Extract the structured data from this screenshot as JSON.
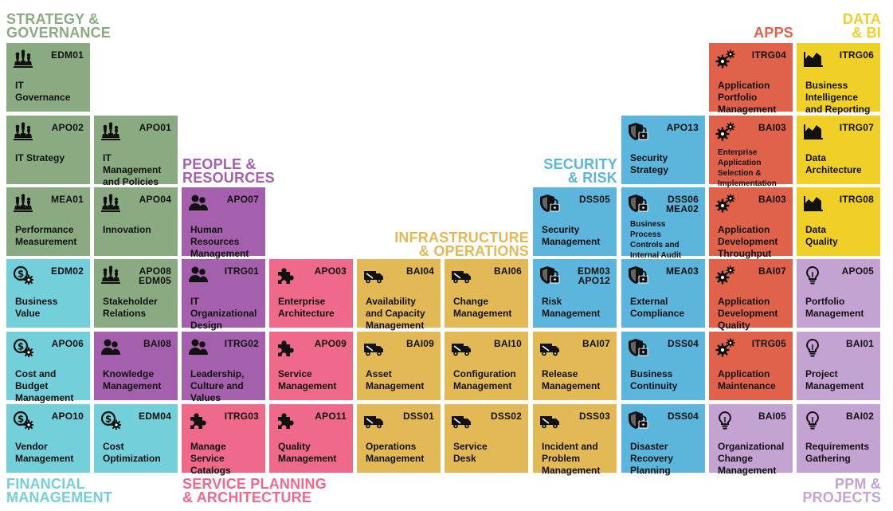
{
  "colors": {
    "governance": "#8aab82",
    "financial": "#73cfd9",
    "people": "#a460ac",
    "service": "#ef6a8a",
    "infra": "#e3b955",
    "security": "#5cb5dc",
    "apps": "#e0624a",
    "data": "#f0d027",
    "ppm": "#c4a3d3"
  },
  "categories": [
    {
      "lines": [
        "STRATEGY &",
        "GOVERNANCE"
      ],
      "color": "#8aab82"
    },
    {
      "lines": [
        "PEOPLE &",
        "RESOURCES"
      ],
      "color": "#a460ac"
    },
    {
      "lines": [
        "INFRASTRUCTURE",
        "& OPERATIONS"
      ],
      "color": "#e3b955"
    },
    {
      "lines": [
        "SECURITY",
        "& RISK"
      ],
      "color": "#5cb5dc"
    },
    {
      "lines": [
        "APPS"
      ],
      "color": "#e0624a"
    },
    {
      "lines": [
        "DATA",
        "& BI"
      ],
      "color": "#f0d027"
    },
    {
      "lines": [
        "FINANCIAL",
        "MANAGEMENT"
      ],
      "color": "#73cfd9"
    },
    {
      "lines": [
        "SERVICE PLANNING",
        "& ARCHITECTURE"
      ],
      "color": "#ef6a8a"
    },
    {
      "lines": [
        "PPM &",
        "PROJECTS"
      ],
      "color": "#c4a3d3"
    }
  ],
  "tiles": [
    {
      "group": "governance",
      "icon": "chess-icon",
      "code": [
        "EDM01"
      ],
      "title": [
        "IT",
        "Governance"
      ]
    },
    {
      "group": "governance",
      "icon": "chess-icon",
      "code": [
        "APO02"
      ],
      "title": [
        "IT Strategy"
      ]
    },
    {
      "group": "governance",
      "icon": "chess-icon",
      "code": [
        "APO01"
      ],
      "title": [
        "IT",
        "Management",
        "and Policies"
      ]
    },
    {
      "group": "governance",
      "icon": "chess-icon",
      "code": [
        "MEA01"
      ],
      "title": [
        "Performance",
        "Measurement"
      ]
    },
    {
      "group": "governance",
      "icon": "chess-icon",
      "code": [
        "APO04"
      ],
      "title": [
        "Innovation"
      ]
    },
    {
      "group": "people",
      "icon": "people-icon",
      "code": [
        "APO07"
      ],
      "title": [
        "Human",
        "Resources",
        "Management"
      ]
    },
    {
      "group": "financial",
      "icon": "dollar-gear-icon",
      "code": [
        "EDM02"
      ],
      "title": [
        "Business",
        "Value"
      ]
    },
    {
      "group": "governance",
      "icon": "chess-icon",
      "code": [
        "APO08",
        "EDM05"
      ],
      "title": [
        "Stakeholder",
        "Relations"
      ]
    },
    {
      "group": "people",
      "icon": "people-icon",
      "code": [
        "ITRG01"
      ],
      "title": [
        "IT",
        "Organizational",
        "Design"
      ]
    },
    {
      "group": "service",
      "icon": "puzzle-icon",
      "code": [
        "APO03"
      ],
      "title": [
        "Enterprise",
        "Architecture"
      ]
    },
    {
      "group": "infra",
      "icon": "truck-icon",
      "code": [
        "BAI04"
      ],
      "title": [
        "Availability",
        "and Capacity",
        "Management"
      ]
    },
    {
      "group": "infra",
      "icon": "truck-icon",
      "code": [
        "BAI06"
      ],
      "title": [
        "Change",
        "Management"
      ]
    },
    {
      "group": "security",
      "icon": "shield-lock-icon",
      "code": [
        "EDM03",
        "APO12"
      ],
      "title": [
        "Risk",
        "Management"
      ]
    },
    {
      "group": "security",
      "icon": "shield-lock-icon",
      "code": [
        "MEA03"
      ],
      "title": [
        "External",
        "Compliance"
      ]
    },
    {
      "group": "apps",
      "icon": "gears-icon",
      "code": [
        "BAI07"
      ],
      "title": [
        "Application",
        "Development",
        "Quality"
      ]
    },
    {
      "group": "ppm",
      "icon": "bulb-icon",
      "code": [
        "APO05"
      ],
      "title": [
        "Portfolio",
        "Management"
      ]
    },
    {
      "group": "financial",
      "icon": "dollar-gear-icon",
      "code": [
        "APO06"
      ],
      "title": [
        "Cost and",
        "Budget",
        "Management"
      ]
    },
    {
      "group": "people",
      "icon": "people-icon",
      "code": [
        "BAI08"
      ],
      "title": [
        "Knowledge",
        "Management"
      ]
    },
    {
      "group": "people",
      "icon": "people-icon",
      "code": [
        "ITRG02"
      ],
      "title": [
        "Leadership,",
        "Culture and",
        "Values"
      ]
    },
    {
      "group": "service",
      "icon": "puzzle-icon",
      "code": [
        "APO09"
      ],
      "title": [
        "Service",
        "Management"
      ]
    },
    {
      "group": "infra",
      "icon": "truck-icon",
      "code": [
        "BAI09"
      ],
      "title": [
        "Asset",
        "Management"
      ]
    },
    {
      "group": "infra",
      "icon": "truck-icon",
      "code": [
        "BAI10"
      ],
      "title": [
        "Configuration",
        "Management"
      ]
    },
    {
      "group": "infra",
      "icon": "truck-icon",
      "code": [
        "BAI07"
      ],
      "title": [
        "Release",
        "Management"
      ]
    },
    {
      "group": "security",
      "icon": "shield-lock-icon",
      "code": [
        "DSS04"
      ],
      "title": [
        "Business",
        "Continuity"
      ]
    },
    {
      "group": "apps",
      "icon": "gears-icon",
      "code": [
        "ITRG05"
      ],
      "title": [
        "Application",
        "Maintenance"
      ]
    },
    {
      "group": "ppm",
      "icon": "bulb-icon",
      "code": [
        "BAI01"
      ],
      "title": [
        "Project",
        "Management"
      ]
    },
    {
      "group": "financial",
      "icon": "dollar-gear-icon",
      "code": [
        "APO10"
      ],
      "title": [
        "Vendor",
        "Management"
      ]
    },
    {
      "group": "financial",
      "icon": "dollar-gear-icon",
      "code": [
        "EDM04"
      ],
      "title": [
        "Cost",
        "Optimization"
      ]
    },
    {
      "group": "service",
      "icon": "puzzle-icon",
      "code": [
        "ITRG03"
      ],
      "title": [
        "Manage",
        "Service",
        "Catalogs"
      ]
    },
    {
      "group": "service",
      "icon": "puzzle-icon",
      "code": [
        "APO11"
      ],
      "title": [
        "Quality",
        "Management"
      ]
    },
    {
      "group": "infra",
      "icon": "truck-icon",
      "code": [
        "DSS01"
      ],
      "title": [
        "Operations",
        "Management"
      ]
    },
    {
      "group": "infra",
      "icon": "truck-icon",
      "code": [
        "DSS02"
      ],
      "title": [
        "Service",
        "Desk"
      ]
    },
    {
      "group": "infra",
      "icon": "truck-icon",
      "code": [
        "DSS03"
      ],
      "title": [
        "Incident and",
        "Problem",
        "Management"
      ]
    },
    {
      "group": "security",
      "icon": "shield-lock-icon",
      "code": [
        "DSS04"
      ],
      "title": [
        "Disaster",
        "Recovery",
        "Planning"
      ]
    },
    {
      "group": "ppm",
      "icon": "bulb-icon",
      "code": [
        "BAI05"
      ],
      "title": [
        "Organizational",
        "Change",
        "Management"
      ]
    },
    {
      "group": "ppm",
      "icon": "bulb-icon",
      "code": [
        "BAI02"
      ],
      "title": [
        "Requirements",
        "Gathering"
      ]
    },
    {
      "group": "security",
      "icon": "shield-lock-icon",
      "code": [
        "DSS05"
      ],
      "title": [
        "Security",
        "Management"
      ]
    },
    {
      "group": "security",
      "icon": "shield-lock-icon",
      "code": [
        "DSS06",
        "MEA02"
      ],
      "title": [
        "Business",
        "Process",
        "Controls and",
        "Internal Audit"
      ],
      "small": true
    },
    {
      "group": "apps",
      "icon": "gears-icon",
      "code": [
        "BAI03"
      ],
      "title": [
        "Application",
        "Development",
        "Throughput"
      ]
    },
    {
      "group": "data",
      "icon": "chart-icon",
      "code": [
        "ITRG08"
      ],
      "title": [
        "Data",
        "Quality"
      ]
    },
    {
      "group": "security",
      "icon": "shield-lock-icon",
      "code": [
        "APO13"
      ],
      "title": [
        "Security",
        "Strategy"
      ]
    },
    {
      "group": "apps",
      "icon": "gears-icon",
      "code": [
        "BAI03"
      ],
      "title": [
        "Enterprise",
        "Application",
        "Selection &",
        "Implementation"
      ],
      "small": true
    },
    {
      "group": "data",
      "icon": "chart-icon",
      "code": [
        "ITRG07"
      ],
      "title": [
        "Data",
        "Architecture"
      ]
    },
    {
      "group": "apps",
      "icon": "gears-icon",
      "code": [
        "ITRG04"
      ],
      "title": [
        "Application",
        "Portfolio",
        "Management"
      ]
    },
    {
      "group": "data",
      "icon": "chart-icon",
      "code": [
        "ITRG06"
      ],
      "title": [
        "Business",
        "Intelligence",
        "and Reporting"
      ]
    }
  ]
}
